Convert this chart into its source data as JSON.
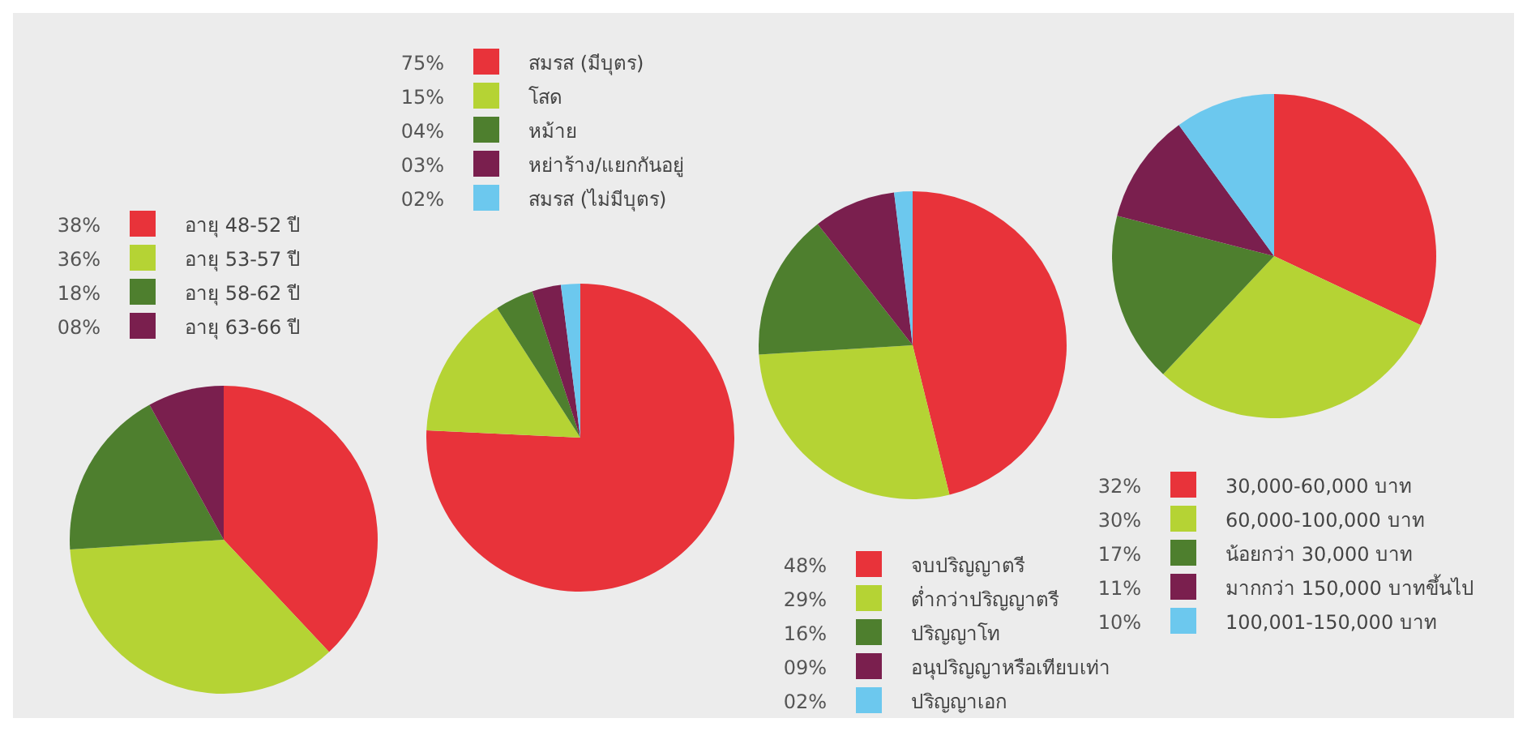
{
  "chart_data": [
    {
      "type": "pie",
      "categories": [
        "อายุ 48-52 ปี",
        "อายุ 53-57 ปี",
        "อายุ 58-62 ปี",
        "อายุ 63-66 ปี"
      ],
      "values": [
        38,
        36,
        18,
        8
      ],
      "value_labels": [
        "38%",
        "36%",
        "18%",
        "08%"
      ],
      "colors": [
        "#e8333a",
        "#b5d334",
        "#4e7f2e",
        "#7a1f4e"
      ],
      "legend": "top"
    },
    {
      "type": "pie",
      "categories": [
        "สมรส (มีบุตร)",
        "โสด",
        "หม้าย",
        "หย่าร้าง/แยกกันอยู่",
        "สมรส (ไม่มีบุตร)"
      ],
      "values": [
        75,
        15,
        4,
        3,
        2
      ],
      "value_labels": [
        "75%",
        "15%",
        "04%",
        "03%",
        "02%"
      ],
      "colors": [
        "#e8333a",
        "#b5d334",
        "#4e7f2e",
        "#7a1f4e",
        "#6cc8ee"
      ],
      "legend": "top"
    },
    {
      "type": "pie",
      "categories": [
        "จบปริญญาตรี",
        "ต่ำกว่าปริญญาตรี",
        "ปริญญาโท",
        "อนุปริญญาหรือเทียบเท่า",
        "ปริญญาเอก"
      ],
      "values": [
        48,
        29,
        16,
        9,
        2
      ],
      "value_labels": [
        "48%",
        "29%",
        "16%",
        "09%",
        "02%"
      ],
      "colors": [
        "#e8333a",
        "#b5d334",
        "#4e7f2e",
        "#7a1f4e",
        "#6cc8ee"
      ],
      "legend": "bottom"
    },
    {
      "type": "pie",
      "categories": [
        "30,000-60,000 บาท",
        "60,000-100,000 บาท",
        "น้อยกว่า 30,000 บาท",
        "มากกว่า 150,000 บาทขึ้นไป",
        "100,001-150,000 บาท"
      ],
      "values": [
        32,
        30,
        17,
        11,
        10
      ],
      "value_labels": [
        "32%",
        "30%",
        "17%",
        "11%",
        "10%"
      ],
      "colors": [
        "#e8333a",
        "#b5d334",
        "#4e7f2e",
        "#7a1f4e",
        "#6cc8ee"
      ],
      "legend": "bottom"
    }
  ]
}
